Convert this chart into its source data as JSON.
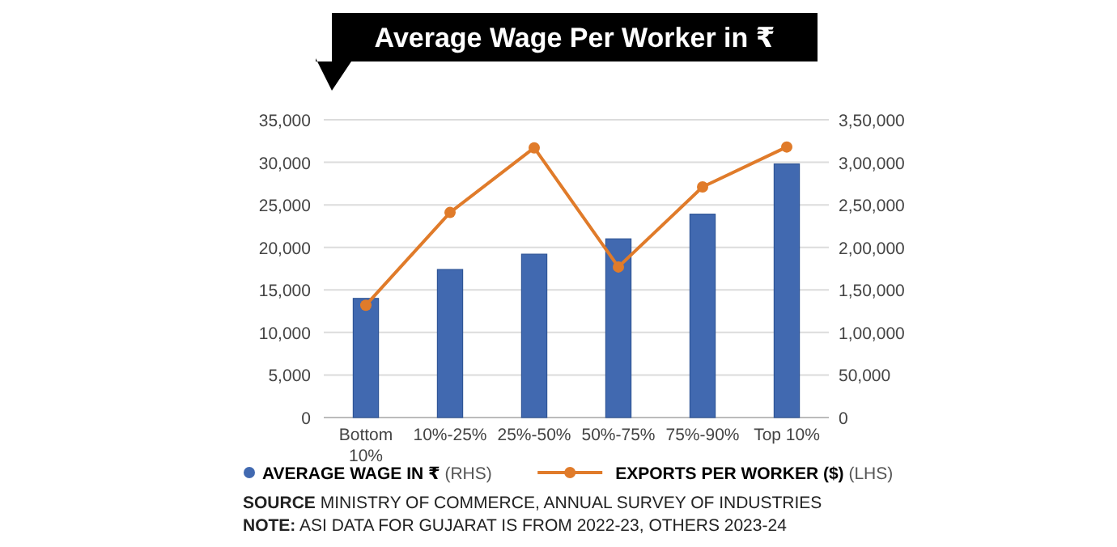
{
  "chart_data": {
    "type": "bar",
    "title": "Average Wage Per Worker in ₹",
    "categories": [
      "Bottom 10%",
      "10%-25%",
      "25%-50%",
      "50%-75%",
      "75%-90%",
      "Top 10%"
    ],
    "series": [
      {
        "name": "AVERAGE WAGE IN ₹ (RHS)",
        "axis": "y2",
        "color": "#4169b0",
        "values": [
          140000,
          174000,
          192000,
          210000,
          239000,
          298000
        ]
      },
      {
        "name": "EXPORTS PER WORKER ($) (LHS)",
        "type": "line",
        "color": "#e07b2a",
        "marker": "circle",
        "values": [
          13200,
          24100,
          31700,
          17700,
          27100,
          31800
        ]
      }
    ],
    "ylim": [
      0,
      35000
    ],
    "yticks": [
      {
        "value": 0,
        "label": "0"
      },
      {
        "value": 5000,
        "label": "5,000"
      },
      {
        "value": 10000,
        "label": "10,000"
      },
      {
        "value": 15000,
        "label": "15,000"
      },
      {
        "value": 20000,
        "label": "20,000"
      },
      {
        "value": 25000,
        "label": "25,000"
      },
      {
        "value": 30000,
        "label": "30,000"
      },
      {
        "value": 35000,
        "label": "35,000"
      }
    ],
    "y2lim": [
      0,
      350000
    ],
    "y2ticks": [
      {
        "value": 0,
        "label": "0"
      },
      {
        "value": 50000,
        "label": "50,000"
      },
      {
        "value": 100000,
        "label": "1,00,000"
      },
      {
        "value": 150000,
        "label": "1,50,000"
      },
      {
        "value": 200000,
        "label": "2,00,000"
      },
      {
        "value": 250000,
        "label": "2,50,000"
      },
      {
        "value": 300000,
        "label": "3,00,000"
      },
      {
        "value": 350000,
        "label": "3,50,000"
      }
    ],
    "grid": "y",
    "legend": "bottom",
    "annotations": [
      "SOURCE MINISTRY OF COMMERCE, ANNUAL SURVEY OF INDUSTRIES",
      "NOTE: ASI DATA FOR GUJARAT IS FROM 2022-23, OTHERS 2023-24"
    ]
  }
}
